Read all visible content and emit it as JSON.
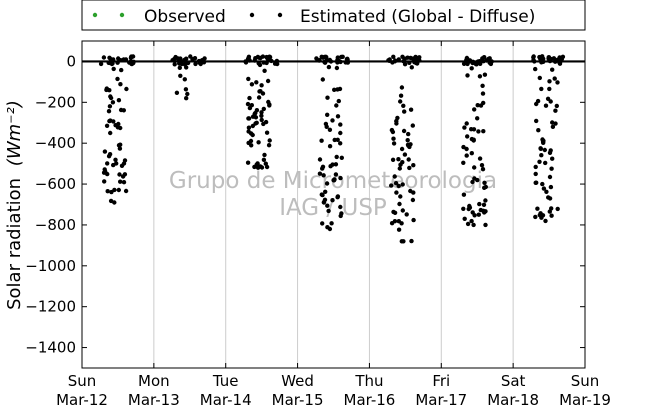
{
  "chart_data": {
    "type": "scatter",
    "title": "",
    "xlabel": "",
    "ylabel": "Solar radiation",
    "ylabel_units": "(Wm⁻²)",
    "ylim": [
      -1500,
      100
    ],
    "yticks": [
      0,
      -200,
      -400,
      -600,
      -800,
      -1000,
      -1200,
      -1400
    ],
    "xlim_days": [
      0,
      7
    ],
    "xtick_labels": [
      {
        "day": "Sun",
        "date": "Mar-12"
      },
      {
        "day": "Mon",
        "date": "Mar-13"
      },
      {
        "day": "Tue",
        "date": "Mar-14"
      },
      {
        "day": "Wed",
        "date": "Mar-15"
      },
      {
        "day": "Thu",
        "date": "Mar-16"
      },
      {
        "day": "Fri",
        "date": "Mar-17"
      },
      {
        "day": "Sat",
        "date": "Mar-18"
      },
      {
        "day": "Sun",
        "date": "Mar-19"
      }
    ],
    "grid": "vertical",
    "legend_position": "top (above plot)",
    "reference_line_y": 0,
    "series": [
      {
        "name": "Observed",
        "color": "#2ca02c",
        "points": []
      },
      {
        "name": "Estimated (Global - Diffuse)",
        "color": "#000000",
        "daily_minimums": [
          {
            "date": "Mar-12",
            "min": -690
          },
          {
            "date": "Mar-13",
            "min": -180
          },
          {
            "date": "Mar-14",
            "min": -520
          },
          {
            "date": "Mar-15",
            "min": -820
          },
          {
            "date": "Mar-16",
            "min": -880
          },
          {
            "date": "Mar-17",
            "min": -800
          },
          {
            "date": "Mar-18",
            "min": -780
          }
        ]
      }
    ]
  },
  "watermark": {
    "line1": "Grupo de Micrometeorologia",
    "line2": "IAG / USP"
  },
  "colors": {
    "observed": "#2ca02c",
    "estimated": "#000000",
    "grid": "#cccccc",
    "watermark": "#bdbdbd"
  }
}
